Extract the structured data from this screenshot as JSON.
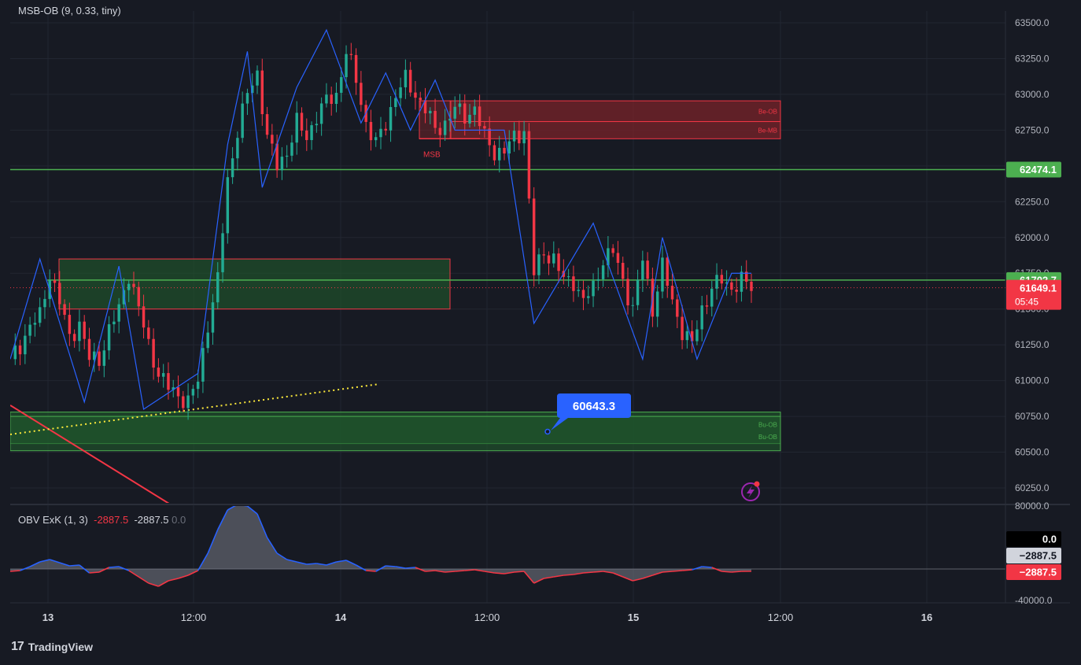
{
  "indicators": {
    "main_title": "MSB-OB (9, 0.33, tiny)",
    "obv_name": "OBV ExK (1, 3)",
    "obv_value_red": "-2887.5",
    "obv_value_white": "-2887.5",
    "obv_value_grey": "0.0"
  },
  "branding": {
    "logo": "17",
    "name": "TradingView"
  },
  "colors": {
    "background": "#171a23",
    "bull": "#22ab94",
    "bear": "#f23645",
    "zigzag": "#2962ff",
    "level_line": "#4caf50",
    "bear_ob_fill": "#7a2329",
    "bull_ob_fill": "#1f5a2c",
    "tooltip": "#2962ff"
  },
  "chart_data": [
    {
      "type": "candlestick",
      "title": "",
      "price_axis": {
        "ticks": [
          "63500.0",
          "63250.0",
          "63000.0",
          "62750.0",
          "62500.0",
          "62250.0",
          "62000.0",
          "61750.0",
          "61500.0",
          "61250.0",
          "61000.0",
          "60750.0",
          "60500.0",
          "60250.0"
        ],
        "ylim": [
          60120,
          63600
        ]
      },
      "time_axis": {
        "ticks": [
          "13",
          "12:00",
          "14",
          "12:00",
          "15",
          "12:00",
          "16"
        ]
      },
      "close_path": [
        [
          0,
          61150
        ],
        [
          2,
          61250
        ],
        [
          4,
          61380
        ],
        [
          6,
          61450
        ],
        [
          8,
          61750
        ],
        [
          10,
          61550
        ],
        [
          12,
          61300
        ],
        [
          14,
          61400
        ],
        [
          16,
          61150
        ],
        [
          18,
          61150
        ],
        [
          20,
          61350
        ],
        [
          22,
          61500
        ],
        [
          24,
          61750
        ],
        [
          26,
          61500
        ],
        [
          28,
          61250
        ],
        [
          30,
          61050
        ],
        [
          32,
          60950
        ],
        [
          34,
          60900
        ],
        [
          36,
          60850
        ],
        [
          38,
          61000
        ],
        [
          40,
          61400
        ],
        [
          42,
          61700
        ],
        [
          44,
          62400
        ],
        [
          46,
          62750
        ],
        [
          48,
          63000
        ],
        [
          50,
          63150
        ],
        [
          52,
          62700
        ],
        [
          54,
          62500
        ],
        [
          56,
          62600
        ],
        [
          58,
          62800
        ],
        [
          60,
          62700
        ],
        [
          62,
          62850
        ],
        [
          64,
          62950
        ],
        [
          66,
          63000
        ],
        [
          68,
          63300
        ],
        [
          70,
          63100
        ],
        [
          72,
          62800
        ],
        [
          74,
          62650
        ],
        [
          76,
          62800
        ],
        [
          78,
          63000
        ],
        [
          80,
          63100
        ],
        [
          82,
          63000
        ],
        [
          84,
          62900
        ],
        [
          86,
          62750
        ],
        [
          88,
          62800
        ],
        [
          90,
          62900
        ],
        [
          92,
          62850
        ],
        [
          94,
          62900
        ],
        [
          96,
          62700
        ],
        [
          98,
          62600
        ],
        [
          100,
          62600
        ],
        [
          102,
          62700
        ],
        [
          104,
          62750
        ],
        [
          106,
          61750
        ],
        [
          108,
          61900
        ],
        [
          110,
          61850
        ],
        [
          112,
          61700
        ],
        [
          114,
          61700
        ],
        [
          116,
          61550
        ],
        [
          118,
          61650
        ],
        [
          120,
          61850
        ],
        [
          122,
          61900
        ],
        [
          124,
          61700
        ],
        [
          126,
          61500
        ],
        [
          128,
          61850
        ],
        [
          130,
          61500
        ],
        [
          132,
          61800
        ],
        [
          134,
          61550
        ],
        [
          136,
          61350
        ],
        [
          138,
          61250
        ],
        [
          140,
          61500
        ],
        [
          142,
          61650
        ],
        [
          144,
          61700
        ],
        [
          146,
          61650
        ],
        [
          148,
          61700
        ],
        [
          150,
          61650
        ]
      ],
      "current_price": 61649.1,
      "countdown": "05:45",
      "levels": [
        {
          "label": "62474.1",
          "price": 62474.1,
          "color": "#4caf50"
        },
        {
          "label": "61702.7",
          "price": 61702.7,
          "color": "#4caf50"
        }
      ],
      "order_blocks": [
        {
          "label": "Be-OB",
          "top": 62955,
          "bottom": 62810,
          "color": "#f23645"
        },
        {
          "label": "Be-MB",
          "top": 62810,
          "bottom": 62690,
          "color": "#f23645"
        },
        {
          "label": "Bu-OB",
          "top": 60780,
          "bottom": 60560,
          "color": "#4caf50"
        },
        {
          "label": "Bu-OB",
          "top": 60750,
          "bottom": 60510,
          "color": "#4caf50"
        }
      ],
      "left_zone": {
        "top": 61850,
        "bottom": 61500
      },
      "annotation_msb": "MSB",
      "tooltip": {
        "label": "60643.3",
        "price": 60643.3
      },
      "zigzag": [
        [
          0,
          61150
        ],
        [
          6,
          61850
        ],
        [
          15,
          60850
        ],
        [
          22,
          61800
        ],
        [
          27,
          60800
        ],
        [
          38,
          61050
        ],
        [
          44,
          62650
        ],
        [
          48,
          63300
        ],
        [
          51,
          62350
        ],
        [
          58,
          63050
        ],
        [
          64,
          63450
        ],
        [
          71,
          62800
        ],
        [
          76,
          63150
        ],
        [
          81,
          62750
        ],
        [
          86,
          63100
        ],
        [
          90,
          62750
        ],
        [
          100,
          62750
        ],
        [
          106,
          61400
        ],
        [
          118,
          62100
        ],
        [
          128,
          61150
        ],
        [
          132,
          62000
        ],
        [
          139,
          61150
        ],
        [
          146,
          61750
        ],
        [
          150,
          61750
        ]
      ]
    },
    {
      "type": "area",
      "title": "OBV ExK (1, 3)",
      "value_axis": {
        "ticks": [
          "80000.0",
          "0.0",
          "-40000.0"
        ],
        "ylim": [
          -45000,
          85000
        ]
      },
      "baseline": 0,
      "badges": [
        {
          "label": "0.0",
          "style": "black"
        },
        {
          "label": "−2887.5",
          "style": "light"
        },
        {
          "label": "−2887.5",
          "style": "red"
        }
      ],
      "values": [
        [
          0,
          -3000
        ],
        [
          2,
          -2000
        ],
        [
          4,
          3000
        ],
        [
          6,
          9000
        ],
        [
          8,
          12000
        ],
        [
          10,
          8000
        ],
        [
          12,
          4000
        ],
        [
          14,
          5000
        ],
        [
          16,
          -5000
        ],
        [
          18,
          -4000
        ],
        [
          20,
          2000
        ],
        [
          22,
          3000
        ],
        [
          24,
          -2000
        ],
        [
          26,
          -10000
        ],
        [
          28,
          -18000
        ],
        [
          30,
          -22000
        ],
        [
          32,
          -15000
        ],
        [
          34,
          -12000
        ],
        [
          36,
          -8000
        ],
        [
          38,
          -2000
        ],
        [
          40,
          20000
        ],
        [
          42,
          50000
        ],
        [
          44,
          75000
        ],
        [
          46,
          82000
        ],
        [
          48,
          80000
        ],
        [
          50,
          70000
        ],
        [
          52,
          40000
        ],
        [
          54,
          20000
        ],
        [
          56,
          12000
        ],
        [
          58,
          9000
        ],
        [
          60,
          6000
        ],
        [
          62,
          7000
        ],
        [
          64,
          5000
        ],
        [
          66,
          9000
        ],
        [
          68,
          11000
        ],
        [
          70,
          5000
        ],
        [
          72,
          -2000
        ],
        [
          74,
          -3000
        ],
        [
          76,
          4000
        ],
        [
          78,
          3000
        ],
        [
          80,
          1000
        ],
        [
          82,
          2000
        ],
        [
          84,
          -3000
        ],
        [
          86,
          -2000
        ],
        [
          88,
          -4000
        ],
        [
          90,
          -3000
        ],
        [
          92,
          -2000
        ],
        [
          94,
          -1000
        ],
        [
          96,
          -3000
        ],
        [
          98,
          -5000
        ],
        [
          100,
          -6000
        ],
        [
          102,
          -4000
        ],
        [
          104,
          -3000
        ],
        [
          106,
          -18000
        ],
        [
          108,
          -12000
        ],
        [
          110,
          -10000
        ],
        [
          112,
          -8000
        ],
        [
          114,
          -7000
        ],
        [
          116,
          -5000
        ],
        [
          118,
          -4000
        ],
        [
          120,
          -3000
        ],
        [
          122,
          -5000
        ],
        [
          124,
          -10000
        ],
        [
          126,
          -15000
        ],
        [
          128,
          -12000
        ],
        [
          130,
          -8000
        ],
        [
          132,
          -4000
        ],
        [
          134,
          -3000
        ],
        [
          136,
          -2000
        ],
        [
          138,
          -1000
        ],
        [
          140,
          3000
        ],
        [
          142,
          2000
        ],
        [
          144,
          -3000
        ],
        [
          146,
          -4000
        ],
        [
          148,
          -3000
        ],
        [
          150,
          -2887
        ]
      ]
    }
  ]
}
